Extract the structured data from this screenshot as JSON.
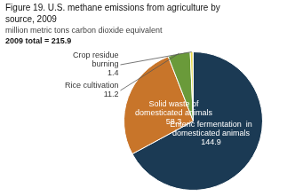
{
  "chart_data": {
    "type": "pie",
    "title": "Figure 19. U.S. methane emissions from agriculture by\nsource, 2009",
    "subtitle": "million metric tons carbon dioxide equivalent",
    "annotations": [
      "2009 total = 215.9"
    ],
    "categories": [
      "Enteric fermentation  in\ndomesticated animals\n144.9",
      "Solid waste of\ndomesticated animals\n58.3",
      "Rice cultivation\n11.2",
      "Crop residue\nburning\n1.4",
      null
    ],
    "values": [
      144.9,
      58.3,
      11.2,
      1.4,
      0.1
    ],
    "colors": [
      "#1b3a54",
      "#c8752a",
      "#6a9a3a",
      "#e8d84a",
      "#2e7a2e"
    ]
  }
}
